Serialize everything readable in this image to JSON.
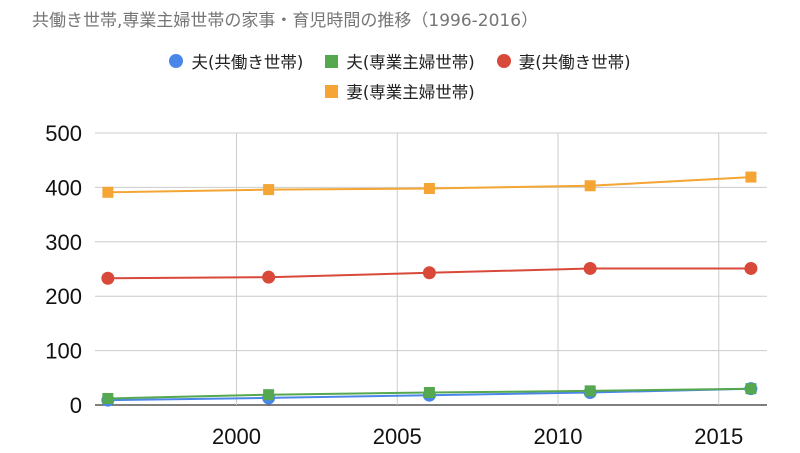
{
  "chart_data": {
    "type": "line",
    "title": "共働き世帯,専業主婦世帯の家事・育児時間の推移（1996-2016）",
    "x": [
      1996,
      2001,
      2006,
      2011,
      2016
    ],
    "xticks": [
      2000,
      2005,
      2010,
      2015
    ],
    "xlim": [
      1995.6,
      2016.5
    ],
    "ylim": [
      0,
      500
    ],
    "yticks": [
      0,
      100,
      200,
      300,
      400,
      500
    ],
    "grid": true,
    "legend_position": "top",
    "series": [
      {
        "name": "夫(共働き世帯)",
        "marker": "circle",
        "color": "#4a86e8",
        "values": [
          9,
          13,
          18,
          23,
          30
        ]
      },
      {
        "name": "夫(専業主婦世帯)",
        "marker": "square",
        "color": "#55a84f",
        "values": [
          12,
          19,
          23,
          26,
          30
        ]
      },
      {
        "name": "妻(共働き世帯)",
        "marker": "circle",
        "color": "#d9493a",
        "values": [
          233,
          235,
          243,
          251,
          251
        ]
      },
      {
        "name": "妻(専業主婦世帯)",
        "marker": "square",
        "color": "#f4a533",
        "values": [
          391,
          396,
          398,
          403,
          419
        ]
      }
    ]
  }
}
